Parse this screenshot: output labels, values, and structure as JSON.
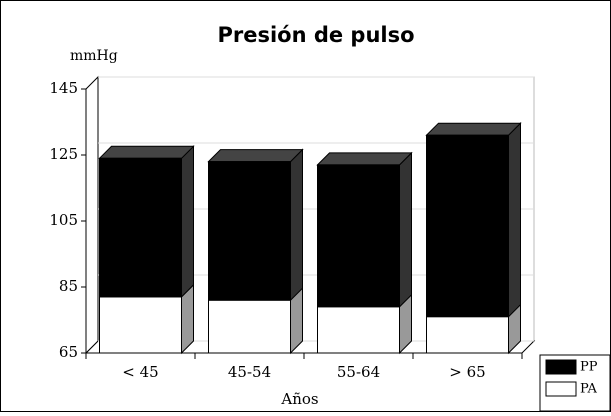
{
  "chart_data": {
    "type": "bar3d_stacked",
    "title": "Presión de pulso",
    "y_label": "mmHg",
    "x_label": "Años",
    "categories": [
      "< 45",
      "45-54",
      "55-64",
      "> 65"
    ],
    "series": [
      {
        "name": "PA",
        "color": "#ffffff",
        "values": [
          82,
          81,
          79,
          76
        ]
      },
      {
        "name": "PP",
        "color": "#000000",
        "values": [
          42,
          42,
          43,
          55
        ]
      }
    ],
    "ylim": [
      65,
      145
    ],
    "yticks": [
      65,
      85,
      105,
      125,
      145
    ],
    "grid": true,
    "legend": "bottom-right"
  }
}
